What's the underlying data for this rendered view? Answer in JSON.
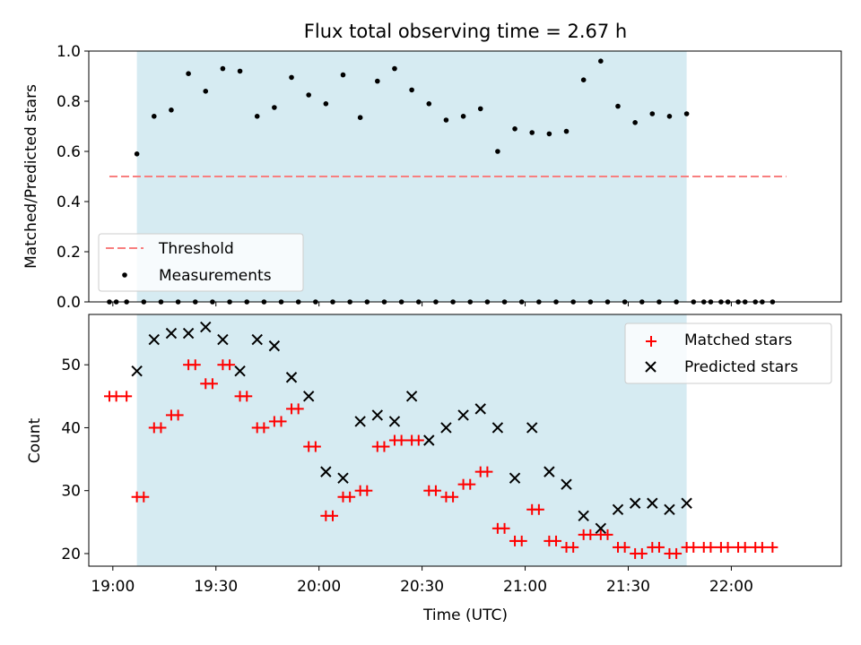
{
  "chart_data": [
    {
      "type": "scatter",
      "title": "Flux total observing time = 2.67 h",
      "xlabel": "",
      "ylabel": "Matched/Predicted stars",
      "ylim": [
        0,
        1.0
      ],
      "yticks": [
        "0.0",
        "0.2",
        "0.4",
        "0.6",
        "0.8",
        "1.0"
      ],
      "xticks": [
        "19:00",
        "19:30",
        "20:00",
        "20:30",
        "21:00",
        "21:30",
        "22:00"
      ],
      "xtick_minutes": [
        1140,
        1170,
        1200,
        1230,
        1260,
        1290,
        1320
      ],
      "xlim": [
        "18:53",
        "22:32"
      ],
      "observing_window": [
        "19:07",
        "21:47"
      ],
      "threshold": {
        "name": "Threshold",
        "value": 0.5,
        "x_start": "18:59",
        "x_end": "22:16",
        "color": "#f87f7f"
      },
      "measurements": {
        "name": "Measurements",
        "color": "#000000",
        "x": [
          "18:59",
          "19:01",
          "19:04",
          "19:07",
          "19:09",
          "19:12",
          "19:14",
          "19:17",
          "19:19",
          "19:22",
          "19:24",
          "19:27",
          "19:29",
          "19:32",
          "19:34",
          "19:37",
          "19:39",
          "19:42",
          "19:44",
          "19:47",
          "19:49",
          "19:52",
          "19:54",
          "19:57",
          "19:59",
          "20:02",
          "20:04",
          "20:07",
          "20:09",
          "20:12",
          "20:14",
          "20:17",
          "20:19",
          "20:22",
          "20:24",
          "20:27",
          "20:29",
          "20:32",
          "20:34",
          "20:37",
          "20:39",
          "20:42",
          "20:44",
          "20:47",
          "20:49",
          "20:52",
          "20:54",
          "20:57",
          "20:59",
          "21:02",
          "21:04",
          "21:07",
          "21:09",
          "21:12",
          "21:14",
          "21:17",
          "21:19",
          "21:22",
          "21:24",
          "21:27",
          "21:29",
          "21:32",
          "21:34",
          "21:37",
          "21:39",
          "21:42",
          "21:44",
          "21:47",
          "21:49",
          "21:52",
          "21:54",
          "21:57",
          "21:59",
          "22:02",
          "22:04",
          "22:07",
          "22:09",
          "22:12"
        ],
        "y": [
          0,
          0,
          0,
          0.59,
          0,
          0.74,
          0,
          0.765,
          0,
          0.91,
          0,
          0.84,
          0,
          0.93,
          0,
          0.92,
          0,
          0.74,
          0,
          0.775,
          0,
          0.895,
          0,
          0.825,
          0,
          0.79,
          0,
          0.905,
          0,
          0.735,
          0,
          0.88,
          0,
          0.93,
          0,
          0.845,
          0,
          0.79,
          0,
          0.725,
          0,
          0.74,
          0,
          0.77,
          0,
          0.6,
          0,
          0.69,
          0,
          0.675,
          0,
          0.67,
          0,
          0.68,
          0,
          0.885,
          0,
          0.96,
          0,
          0.78,
          0,
          0.715,
          0,
          0.75,
          0,
          0.74,
          0,
          0.75,
          0,
          0,
          0,
          0,
          0,
          0,
          0,
          0,
          0,
          0
        ]
      },
      "legend": {
        "position": "lower-left",
        "entries": [
          "Threshold",
          "Measurements"
        ]
      },
      "grid": false
    },
    {
      "type": "scatter",
      "title": "",
      "xlabel": "Time (UTC)",
      "ylabel": "Count",
      "ylim": [
        18,
        58
      ],
      "yticks": [
        "20",
        "30",
        "40",
        "50"
      ],
      "xticks": [
        "19:00",
        "19:30",
        "20:00",
        "20:30",
        "21:00",
        "21:30",
        "22:00"
      ],
      "series": [
        {
          "name": "Matched stars",
          "marker": "+",
          "color": "#ff0000",
          "x": [
            "18:59",
            "19:01",
            "19:04",
            "19:07",
            "19:09",
            "19:12",
            "19:14",
            "19:17",
            "19:19",
            "19:22",
            "19:24",
            "19:27",
            "19:29",
            "19:32",
            "19:34",
            "19:37",
            "19:39",
            "19:42",
            "19:44",
            "19:47",
            "19:49",
            "19:52",
            "19:54",
            "19:57",
            "19:59",
            "20:02",
            "20:04",
            "20:07",
            "20:09",
            "20:12",
            "20:14",
            "20:17",
            "20:19",
            "20:22",
            "20:24",
            "20:27",
            "20:29",
            "20:32",
            "20:34",
            "20:37",
            "20:39",
            "20:42",
            "20:44",
            "20:47",
            "20:49",
            "20:52",
            "20:54",
            "20:57",
            "20:59",
            "21:02",
            "21:04",
            "21:07",
            "21:09",
            "21:12",
            "21:14",
            "21:17",
            "21:19",
            "21:22",
            "21:24",
            "21:27",
            "21:29",
            "21:32",
            "21:34",
            "21:37",
            "21:39",
            "21:42",
            "21:44",
            "21:47",
            "21:49",
            "21:52",
            "21:54",
            "21:57",
            "21:59",
            "22:02",
            "22:04",
            "22:07",
            "22:09",
            "22:12"
          ],
          "y": [
            45,
            45,
            45,
            29,
            29,
            40,
            40,
            42,
            42,
            50,
            50,
            47,
            47,
            50,
            50,
            45,
            45,
            40,
            40,
            41,
            41,
            43,
            43,
            37,
            37,
            26,
            26,
            29,
            29,
            30,
            30,
            37,
            37,
            38,
            38,
            38,
            38,
            30,
            30,
            29,
            29,
            31,
            31,
            33,
            33,
            24,
            24,
            22,
            22,
            27,
            27,
            22,
            22,
            21,
            21,
            23,
            23,
            23,
            23,
            21,
            21,
            20,
            20,
            21,
            21,
            20,
            20,
            21,
            21,
            21,
            21,
            21,
            21,
            21,
            21,
            21,
            21,
            21
          ]
        },
        {
          "name": "Predicted stars",
          "marker": "x",
          "color": "#000000",
          "x": [
            "19:07",
            "19:12",
            "19:17",
            "19:22",
            "19:27",
            "19:32",
            "19:37",
            "19:42",
            "19:47",
            "19:52",
            "19:57",
            "20:02",
            "20:07",
            "20:12",
            "20:17",
            "20:22",
            "20:27",
            "20:32",
            "20:37",
            "20:42",
            "20:47",
            "20:52",
            "20:57",
            "21:02",
            "21:07",
            "21:12",
            "21:17",
            "21:22",
            "21:27",
            "21:32",
            "21:37",
            "21:42",
            "21:47"
          ],
          "y": [
            49,
            54,
            55,
            55,
            56,
            54,
            49,
            54,
            53,
            48,
            45,
            33,
            32,
            41,
            42,
            41,
            45,
            38,
            40,
            42,
            43,
            40,
            32,
            40,
            33,
            31,
            26,
            24,
            27,
            28,
            28,
            27,
            28
          ]
        }
      ],
      "legend": {
        "position": "top-right",
        "entries": [
          "Matched stars",
          "Predicted stars"
        ]
      },
      "grid": false
    }
  ]
}
